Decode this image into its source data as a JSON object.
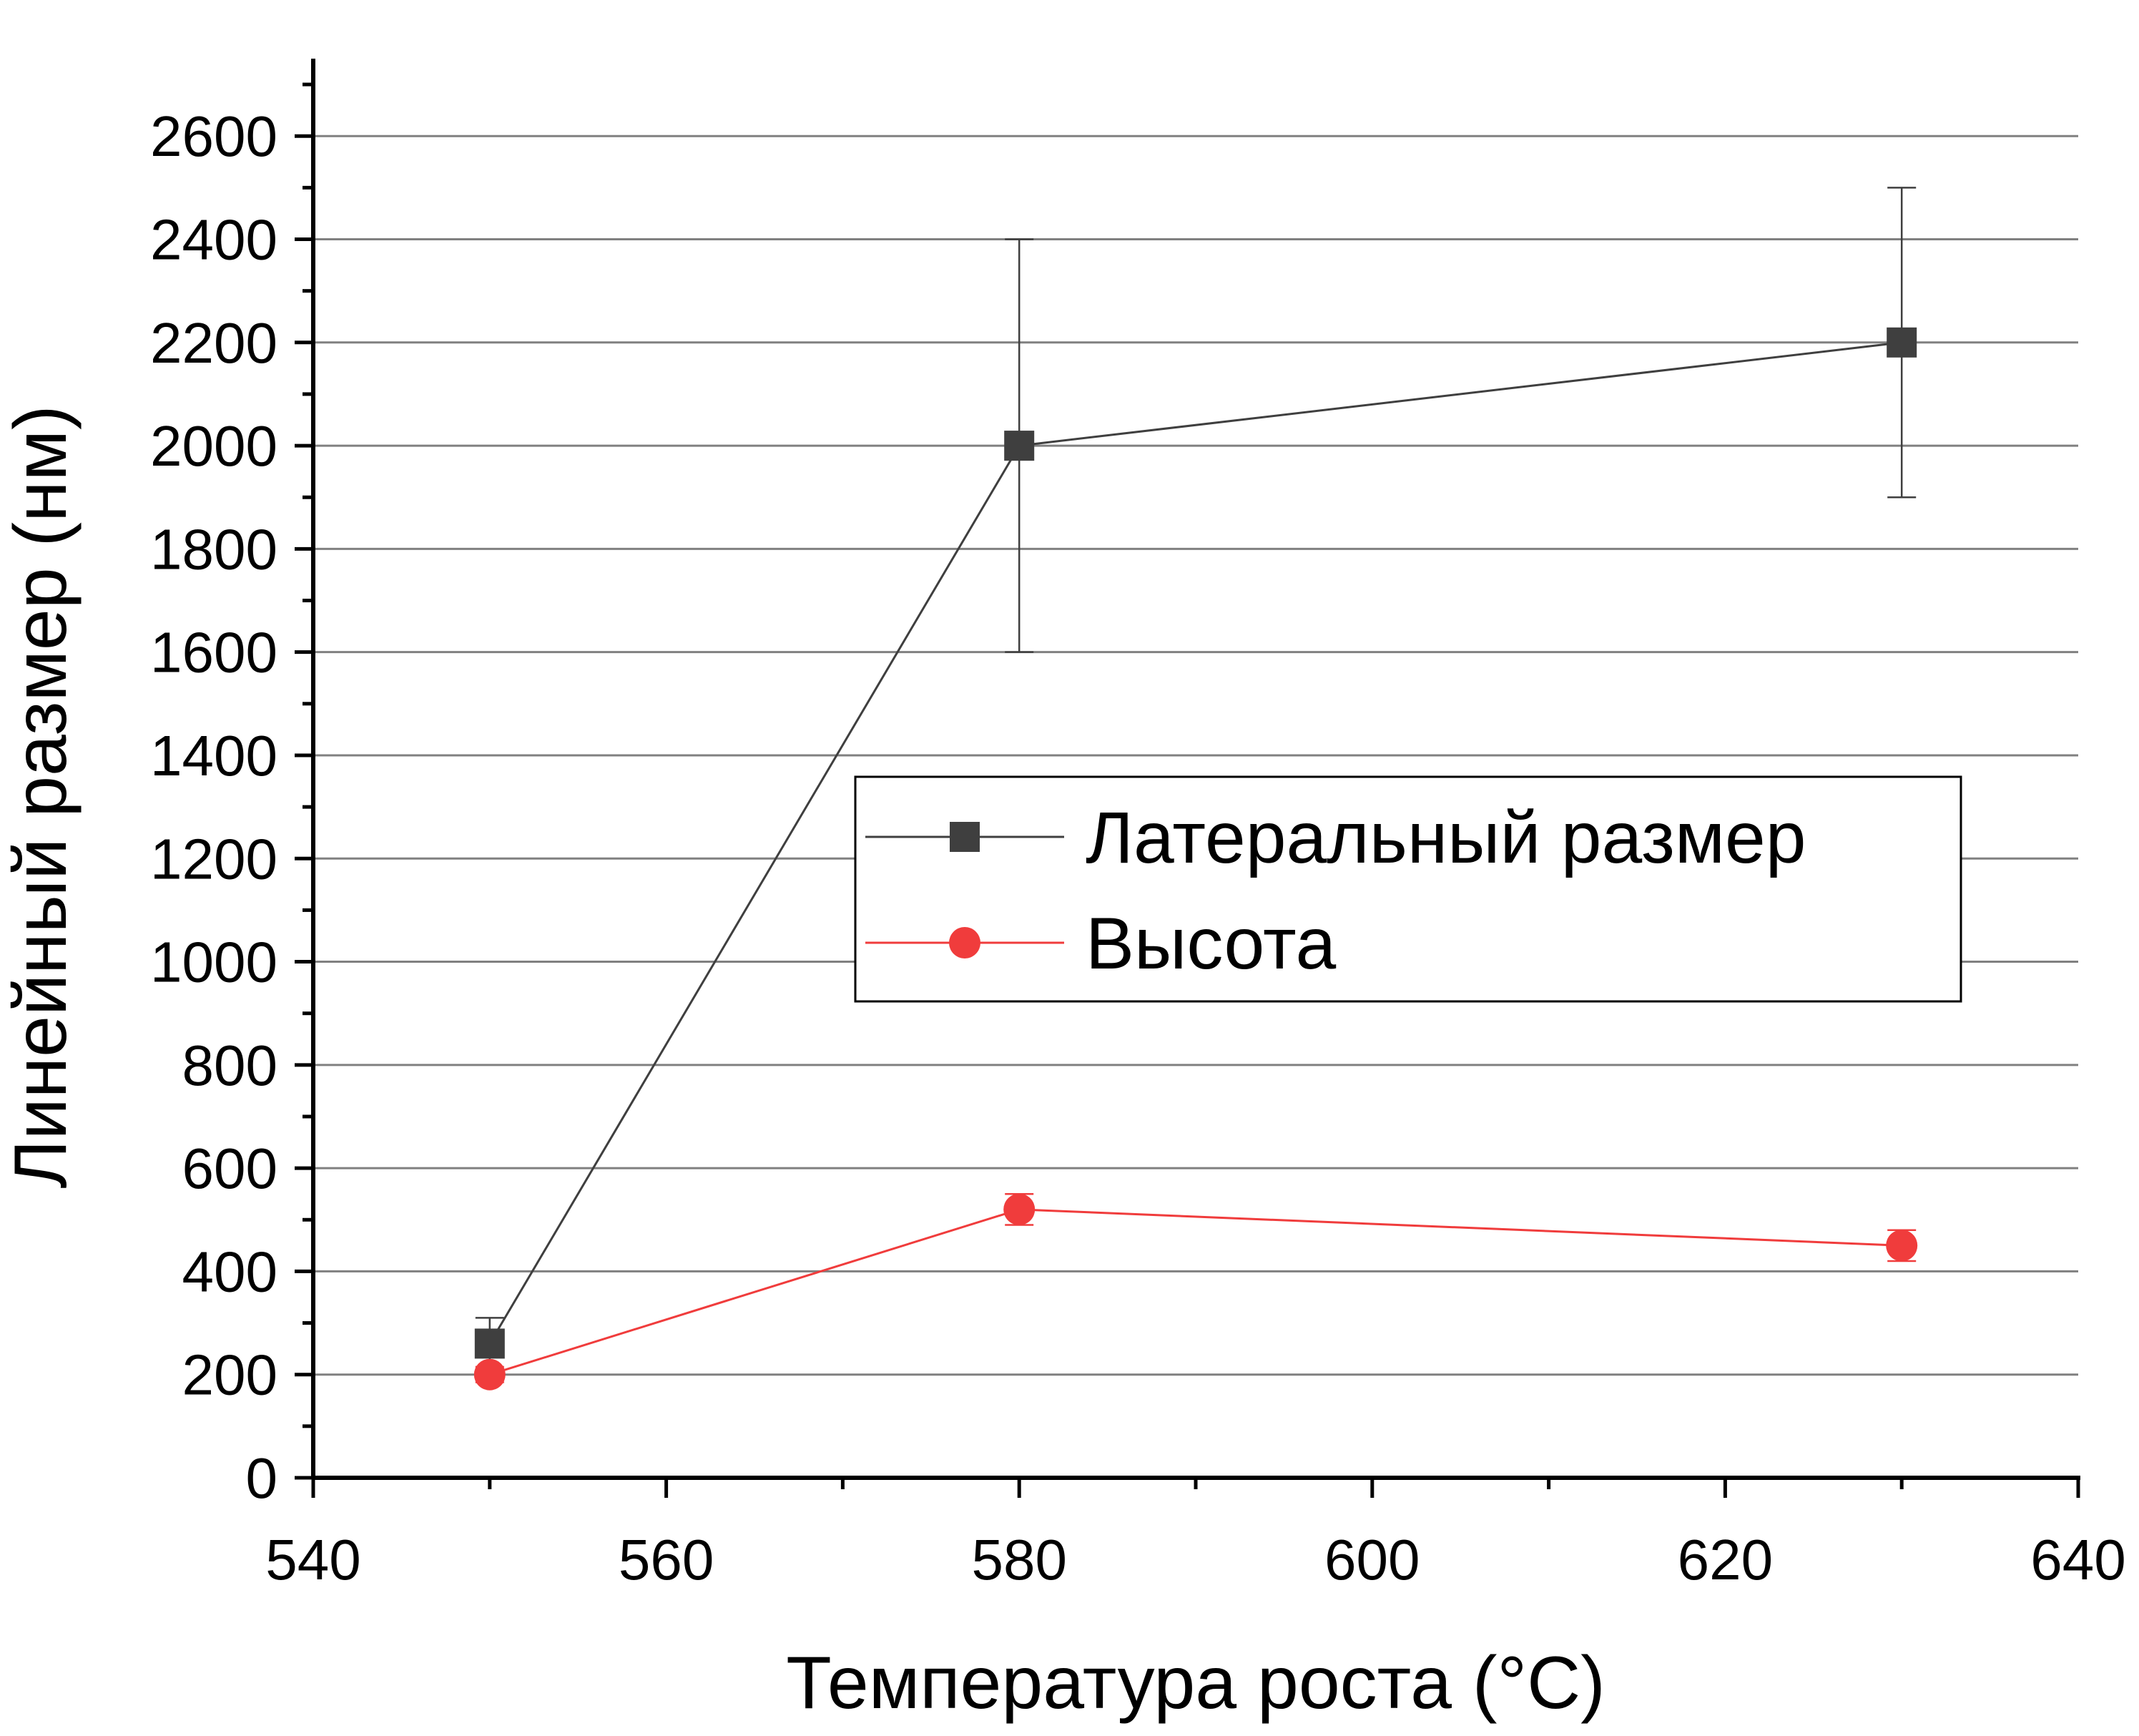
{
  "chart_data": {
    "type": "line",
    "xlabel": "Температура роста (°C)",
    "ylabel": "Линейный размер (нм)",
    "xlim": [
      540,
      640
    ],
    "ylim": [
      0,
      2750
    ],
    "x_ticks": [
      540,
      560,
      580,
      600,
      620,
      640
    ],
    "y_ticks": [
      0,
      200,
      400,
      600,
      800,
      1000,
      1200,
      1400,
      1600,
      1800,
      2000,
      2200,
      2400,
      2600
    ],
    "grid": "horizontal",
    "legend_position": "center-right",
    "series": [
      {
        "name": "Латеральный размер",
        "marker": "square",
        "color": "#3f3f3f",
        "x": [
          550,
          580,
          630
        ],
        "y": [
          260,
          2000,
          2200
        ],
        "yerr": [
          50,
          400,
          300
        ]
      },
      {
        "name": "Высота",
        "marker": "circle",
        "color": "#f03c3c",
        "x": [
          550,
          580,
          630
        ],
        "y": [
          200,
          520,
          450
        ],
        "yerr": [
          15,
          30,
          30
        ]
      }
    ]
  }
}
